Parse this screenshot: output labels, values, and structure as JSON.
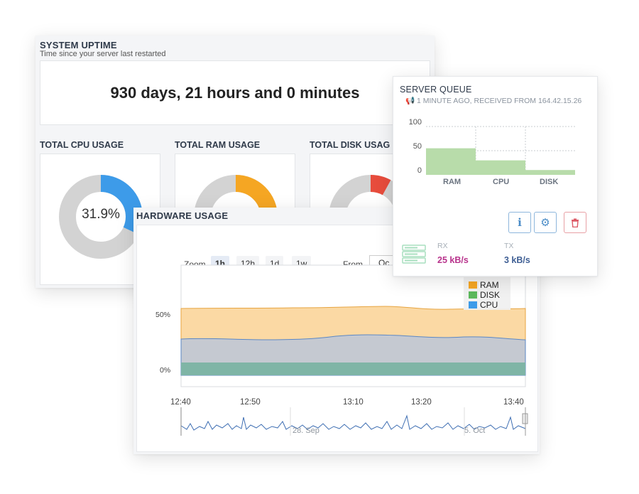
{
  "uptime": {
    "title": "SYSTEM UPTIME",
    "subtitle": "Time since your server last restarted",
    "value": "930 days, 21 hours and 0 minutes"
  },
  "usage": {
    "cpu": {
      "label": "TOTAL CPU USAGE",
      "percent": 31.9,
      "text": "31.9%",
      "color": "#3d9be9"
    },
    "ram": {
      "label": "TOTAL RAM USAGE",
      "percent": 33,
      "color": "#f5a623"
    },
    "disk": {
      "label": "TOTAL DISK USAG",
      "percent": 8,
      "color": "#e74c3c"
    }
  },
  "queue": {
    "title": "SERVER QUEUE",
    "subtitle": "1 MINUTE AGO, RECEIVED FROM 164.42.15.26",
    "y_ticks": [
      "100",
      "50",
      "0"
    ],
    "buttons": {
      "info": "i",
      "settings": "⚙",
      "delete": "🗑"
    },
    "rx_label": "RX",
    "rx_value": "25 kB/s",
    "tx_label": "TX",
    "tx_value": "3 kB/s",
    "colors": {
      "bars": "#b8dcaa",
      "rx": "#b8338c",
      "tx": "#3f5f94",
      "server_icon": "#a8dfbf"
    }
  },
  "chart_data": {
    "type": "bar",
    "categories": [
      "RAM",
      "CPU",
      "DISK"
    ],
    "values": [
      55,
      30,
      10
    ],
    "ylim": [
      0,
      100
    ]
  },
  "hardware": {
    "title": "HARDWARE USAGE",
    "zoom_label": "Zoom",
    "zoom_options": [
      "1h",
      "12h",
      "1d",
      "1w"
    ],
    "zoom_active": "1h",
    "from_label": "From",
    "from_value": "Oc",
    "legend": [
      {
        "name": "RAM",
        "color": "#f5a623"
      },
      {
        "name": "DISK",
        "color": "#5cb85c"
      },
      {
        "name": "CPU",
        "color": "#3d9be9"
      }
    ],
    "y_ticks": [
      "50%",
      "0%"
    ],
    "x_ticks": [
      "12:40",
      "12:50",
      "13:10",
      "13:20",
      "13:40"
    ],
    "navigator_labels": [
      "28. Sep",
      "5. Oct"
    ]
  }
}
